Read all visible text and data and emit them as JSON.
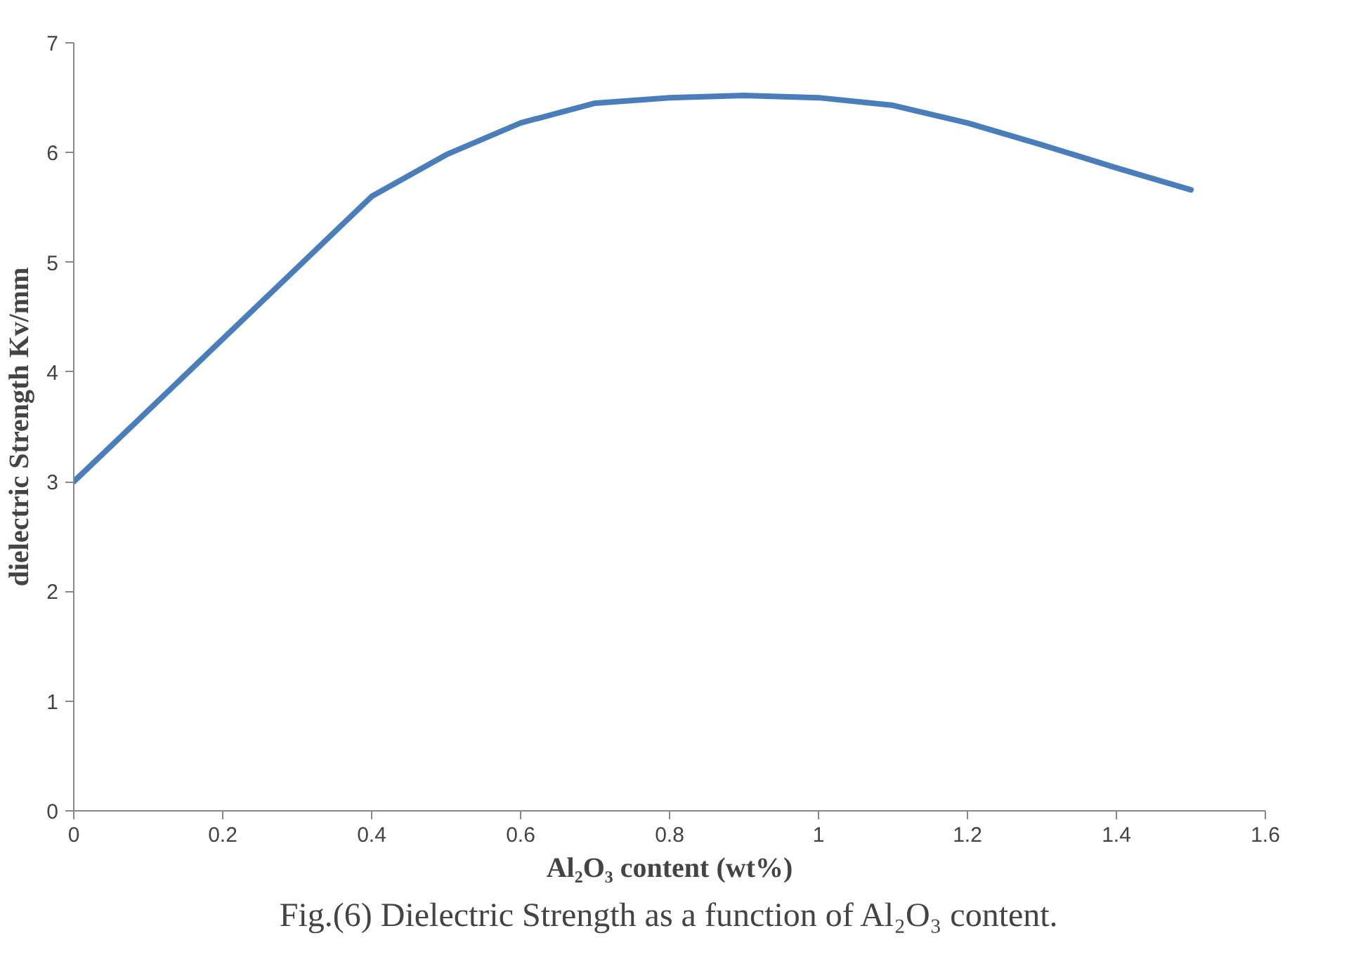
{
  "chart_data": {
    "type": "line",
    "xlabel": "Al₂O₃ content (wt%)",
    "ylabel": "dielectric Strength Kv/mm",
    "annotations": [
      "Fig.(6) Dielectric Strength as a function of Al₂O₃ content."
    ],
    "x": [
      0,
      0.1,
      0.2,
      0.3,
      0.4,
      0.5,
      0.6,
      0.7,
      0.8,
      0.9,
      1.0,
      1.1,
      1.2,
      1.3,
      1.4,
      1.5
    ],
    "series": [
      {
        "color": "#4a7ebb",
        "values": [
          3.0,
          3.65,
          4.3,
          4.95,
          5.6,
          5.98,
          6.27,
          6.45,
          6.5,
          6.52,
          6.5,
          6.43,
          6.27,
          6.07,
          5.86,
          5.66
        ]
      }
    ],
    "xlim": [
      0,
      1.6
    ],
    "ylim": [
      0,
      7
    ],
    "xticks": [
      0,
      0.2,
      0.4,
      0.6,
      0.8,
      1,
      1.2,
      1.4,
      1.6
    ],
    "yticks": [
      0,
      1,
      2,
      3,
      4,
      5,
      6,
      7
    ],
    "grid": false,
    "marker": "none",
    "line_style": "solid"
  }
}
